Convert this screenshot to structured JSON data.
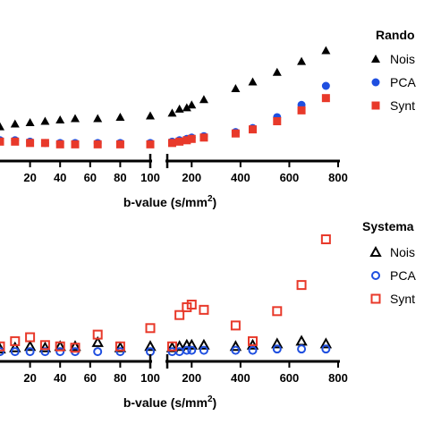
{
  "chart_data": [
    {
      "type": "scatter",
      "legend_title": "Rando",
      "xlabel_main": "b-value (s/mm",
      "xlabel_sup": "2",
      "xlabel_end": ")",
      "x_break": {
        "left_range": [
          0,
          100
        ],
        "right_range": [
          100,
          800
        ]
      },
      "x_ticks_left": [
        "20",
        "40",
        "60",
        "80",
        "100"
      ],
      "x_ticks_right": [
        "200",
        "400",
        "600",
        "800"
      ],
      "y_range": [
        0,
        1
      ],
      "series": [
        {
          "name": "Nois",
          "marker": "triangle-filled",
          "color": "#000000",
          "x": [
            0,
            10,
            20,
            30,
            40,
            50,
            65,
            80,
            100,
            120,
            150,
            180,
            200,
            250,
            380,
            450,
            550,
            650,
            750
          ],
          "y": [
            0.2,
            0.22,
            0.23,
            0.24,
            0.25,
            0.26,
            0.26,
            0.27,
            0.28,
            0.3,
            0.33,
            0.34,
            0.36,
            0.4,
            0.48,
            0.53,
            0.6,
            0.68,
            0.76
          ]
        },
        {
          "name": "PCA",
          "marker": "circle-filled",
          "color": "#1f4fe0",
          "x": [
            0,
            10,
            20,
            30,
            40,
            50,
            65,
            80,
            100,
            120,
            150,
            180,
            200,
            250,
            380,
            450,
            550,
            650,
            750
          ],
          "y": [
            0.1,
            0.1,
            0.09,
            0.08,
            0.08,
            0.08,
            0.08,
            0.08,
            0.08,
            0.09,
            0.1,
            0.11,
            0.12,
            0.13,
            0.16,
            0.19,
            0.27,
            0.36,
            0.5
          ]
        },
        {
          "name": "Synt",
          "marker": "square-filled",
          "color": "#e8392a",
          "x": [
            0,
            10,
            20,
            30,
            40,
            50,
            65,
            80,
            100,
            120,
            150,
            180,
            200,
            250,
            380,
            450,
            550,
            650,
            750
          ],
          "y": [
            0.09,
            0.09,
            0.08,
            0.08,
            0.07,
            0.07,
            0.07,
            0.07,
            0.07,
            0.08,
            0.09,
            0.1,
            0.11,
            0.12,
            0.15,
            0.18,
            0.24,
            0.32,
            0.41
          ]
        }
      ]
    },
    {
      "type": "scatter",
      "legend_title": "Systema",
      "xlabel_main": "b-value (s/mm",
      "xlabel_sup": "2",
      "xlabel_end": ")",
      "x_break": {
        "left_range": [
          0,
          100
        ],
        "right_range": [
          100,
          800
        ]
      },
      "x_ticks_left": [
        "20",
        "40",
        "60",
        "80",
        "100"
      ],
      "x_ticks_right": [
        "200",
        "400",
        "600",
        "800"
      ],
      "y_range": [
        0,
        1
      ],
      "series": [
        {
          "name": "Nois",
          "marker": "triangle-open",
          "color": "#000000",
          "x": [
            0,
            10,
            20,
            30,
            40,
            50,
            65,
            80,
            100,
            120,
            150,
            180,
            200,
            250,
            380,
            450,
            550,
            650,
            750
          ],
          "y": [
            0.04,
            0.05,
            0.06,
            0.05,
            0.06,
            0.06,
            0.09,
            0.05,
            0.06,
            0.05,
            0.06,
            0.07,
            0.07,
            0.07,
            0.06,
            0.07,
            0.08,
            0.1,
            0.08
          ]
        },
        {
          "name": "PCA",
          "marker": "circle-open",
          "color": "#1f4fe0",
          "x": [
            0,
            10,
            20,
            30,
            40,
            50,
            65,
            80,
            100,
            120,
            150,
            180,
            200,
            250,
            380,
            450,
            550,
            650,
            750
          ],
          "y": [
            0.02,
            0.02,
            0.02,
            0.02,
            0.02,
            0.02,
            0.02,
            0.02,
            0.02,
            0.02,
            0.02,
            0.03,
            0.03,
            0.03,
            0.03,
            0.03,
            0.04,
            0.04,
            0.04
          ]
        },
        {
          "name": "Synt",
          "marker": "square-open",
          "color": "#e8392a",
          "x": [
            0,
            10,
            20,
            30,
            40,
            50,
            65,
            80,
            100,
            120,
            150,
            180,
            200,
            250,
            380,
            450,
            550,
            650,
            750
          ],
          "y": [
            0.06,
            0.1,
            0.13,
            0.07,
            0.06,
            0.05,
            0.15,
            0.06,
            0.2,
            0.06,
            0.3,
            0.36,
            0.38,
            0.34,
            0.22,
            0.1,
            0.33,
            0.53,
            0.88
          ]
        }
      ]
    }
  ]
}
